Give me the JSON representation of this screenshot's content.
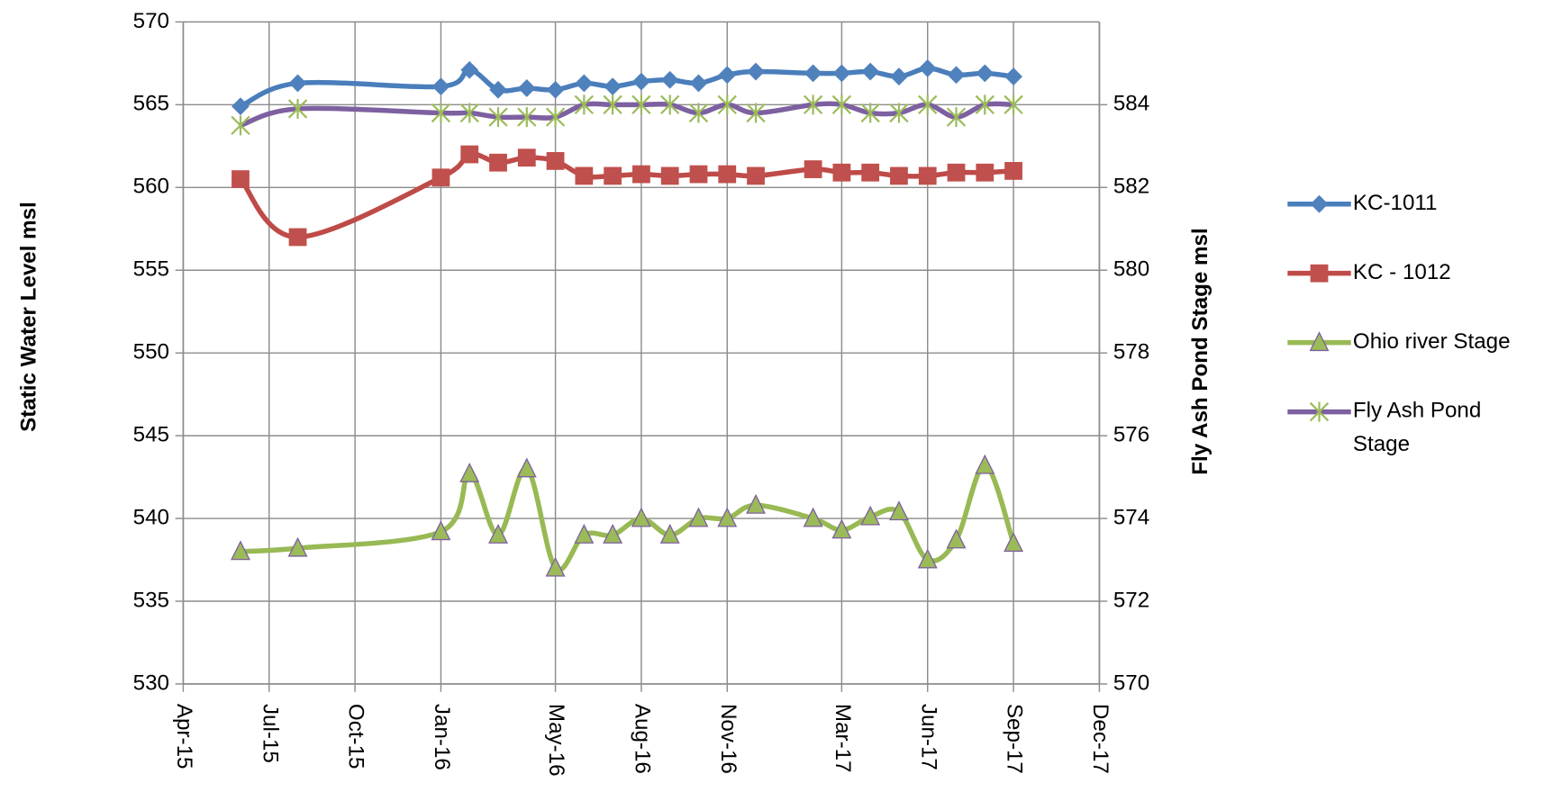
{
  "chart_data": {
    "type": "line",
    "x": [
      "2015-06",
      "2015-08",
      "2016-01",
      "2016-02",
      "2016-03",
      "2016-04",
      "2016-05",
      "2016-06",
      "2016-07",
      "2016-08",
      "2016-09",
      "2016-10",
      "2016-11",
      "2016-12",
      "2017-02",
      "2017-03",
      "2017-04",
      "2017-05",
      "2017-06",
      "2017-07",
      "2017-08",
      "2017-09"
    ],
    "series": [
      {
        "name": "KC-1011",
        "color": "#4a7ebb",
        "marker": "diamond",
        "marker_color": "#4f81bd",
        "axis": "y",
        "values": [
          564.9,
          566.3,
          566.1,
          567.1,
          565.9,
          566.0,
          565.9,
          566.3,
          566.1,
          566.4,
          566.5,
          566.3,
          566.8,
          567.0,
          566.9,
          566.9,
          567.0,
          566.7,
          567.2,
          566.8,
          566.9,
          566.7
        ]
      },
      {
        "name": "KC - 1012",
        "color": "#be4b48",
        "marker": "square",
        "marker_color": "#c0504d",
        "axis": "y",
        "values": [
          560.5,
          557.0,
          560.6,
          562.0,
          561.5,
          561.8,
          561.6,
          560.7,
          560.7,
          560.8,
          560.7,
          560.8,
          560.8,
          560.7,
          561.1,
          560.9,
          560.9,
          560.7,
          560.7,
          560.9,
          560.9,
          561.0
        ]
      },
      {
        "name": "Ohio river Stage",
        "color": "#98b954",
        "marker": "triangle",
        "marker_color": "#9bbb59",
        "axis": "y",
        "values": [
          538.0,
          538.2,
          539.2,
          542.7,
          539.0,
          543.0,
          537.0,
          539.0,
          539.0,
          540.0,
          539.0,
          540.0,
          540.0,
          540.8,
          540.0,
          539.3,
          540.1,
          540.4,
          537.5,
          538.7,
          543.2,
          538.5
        ]
      },
      {
        "name": "Fly Ash Pond Stage",
        "color": "#7d60a0",
        "marker": "star",
        "marker_color": "#9bbb59",
        "axis": "y2",
        "values": [
          583.5,
          583.9,
          583.8,
          583.8,
          583.7,
          583.7,
          583.7,
          584.0,
          584.0,
          584.0,
          584.0,
          583.8,
          584.0,
          583.8,
          584.0,
          584.0,
          583.8,
          583.8,
          584.0,
          583.7,
          584.0,
          584.0
        ]
      }
    ],
    "xlim": [
      "2015-04",
      "2017-12"
    ],
    "xticks": [
      {
        "value": "2015-04",
        "label": "Apr-15"
      },
      {
        "value": "2015-07",
        "label": "Jul-15"
      },
      {
        "value": "2015-10",
        "label": "Oct-15"
      },
      {
        "value": "2016-01",
        "label": "Jan-16"
      },
      {
        "value": "2016-05",
        "label": "May-16"
      },
      {
        "value": "2016-08",
        "label": "Aug-16"
      },
      {
        "value": "2016-11",
        "label": "Nov-16"
      },
      {
        "value": "2017-03",
        "label": "Mar-17"
      },
      {
        "value": "2017-06",
        "label": "Jun-17"
      },
      {
        "value": "2017-09",
        "label": "Sep-17"
      },
      {
        "value": "2017-12",
        "label": "Dec-17"
      }
    ],
    "ylim": [
      530,
      570
    ],
    "yticks": [
      530,
      535,
      540,
      545,
      550,
      555,
      560,
      565,
      570
    ],
    "y2lim": [
      570,
      586
    ],
    "y2ticks": [
      570,
      572,
      574,
      576,
      578,
      580,
      582,
      584
    ],
    "ylabel": "Static Water Level msl",
    "y2label": "Fly Ash Pond Stage msl",
    "grid": true,
    "legend": "right"
  }
}
